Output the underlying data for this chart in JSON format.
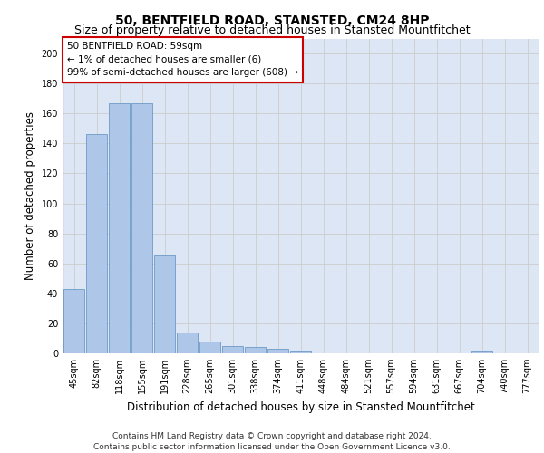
{
  "title": "50, BENTFIELD ROAD, STANSTED, CM24 8HP",
  "subtitle": "Size of property relative to detached houses in Stansted Mountfitchet",
  "xlabel": "Distribution of detached houses by size in Stansted Mountfitchet",
  "ylabel": "Number of detached properties",
  "categories": [
    "45sqm",
    "82sqm",
    "118sqm",
    "155sqm",
    "191sqm",
    "228sqm",
    "265sqm",
    "301sqm",
    "338sqm",
    "374sqm",
    "411sqm",
    "448sqm",
    "484sqm",
    "521sqm",
    "557sqm",
    "594sqm",
    "631sqm",
    "667sqm",
    "704sqm",
    "740sqm",
    "777sqm"
  ],
  "values": [
    43,
    146,
    167,
    167,
    65,
    14,
    8,
    5,
    4,
    3,
    2,
    0,
    0,
    0,
    0,
    0,
    0,
    0,
    2,
    0,
    0
  ],
  "bar_color": "#aec6e8",
  "bar_edge_color": "#5a8fc0",
  "annotation_text": "50 BENTFIELD ROAD: 59sqm\n← 1% of detached houses are smaller (6)\n99% of semi-detached houses are larger (608) →",
  "annotation_box_color": "#ffffff",
  "annotation_box_edge_color": "#cc0000",
  "vline_color": "#cc0000",
  "ylim": [
    0,
    210
  ],
  "yticks": [
    0,
    20,
    40,
    60,
    80,
    100,
    120,
    140,
    160,
    180,
    200
  ],
  "grid_color": "#cccccc",
  "background_color": "#dce6f5",
  "footer_text": "Contains HM Land Registry data © Crown copyright and database right 2024.\nContains public sector information licensed under the Open Government Licence v3.0.",
  "title_fontsize": 10,
  "subtitle_fontsize": 9,
  "xlabel_fontsize": 8.5,
  "ylabel_fontsize": 8.5,
  "tick_fontsize": 7,
  "annotation_fontsize": 7.5,
  "footer_fontsize": 6.5
}
